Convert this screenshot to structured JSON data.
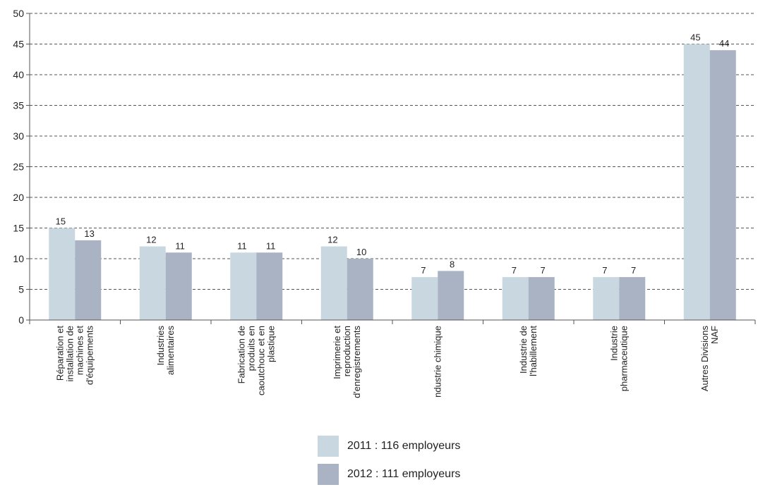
{
  "chart_data": {
    "type": "bar",
    "categories": [
      [
        "Réparation et",
        "installation de",
        "machines et",
        "d'équipements"
      ],
      [
        "Industries",
        "alimentaires"
      ],
      [
        "Fabrication de",
        "produits en",
        "caoutchouc et en",
        "plastique"
      ],
      [
        "Imprimerie et",
        "reproduction",
        "d'enregistrements"
      ],
      [
        "ndustrie chimique"
      ],
      [
        "Industrie de",
        "l'habillement"
      ],
      [
        "Industrie",
        "pharmaceutique"
      ],
      [
        "Autres Divisions",
        "NAF"
      ]
    ],
    "series": [
      {
        "name": "2011 : 116 employeurs",
        "color": "#c8d7e0",
        "values": [
          15,
          12,
          11,
          12,
          7,
          7,
          7,
          45
        ]
      },
      {
        "name": "2012 : 111 employeurs",
        "color": "#a9b3c4",
        "values": [
          13,
          11,
          11,
          10,
          8,
          7,
          7,
          44
        ]
      }
    ],
    "ylim": [
      0,
      50
    ],
    "yticks": [
      0,
      5,
      10,
      15,
      20,
      25,
      30,
      35,
      40,
      45,
      50
    ],
    "grid": true,
    "legend_position": "bottom-center",
    "title": "",
    "xlabel": "",
    "ylabel": ""
  }
}
